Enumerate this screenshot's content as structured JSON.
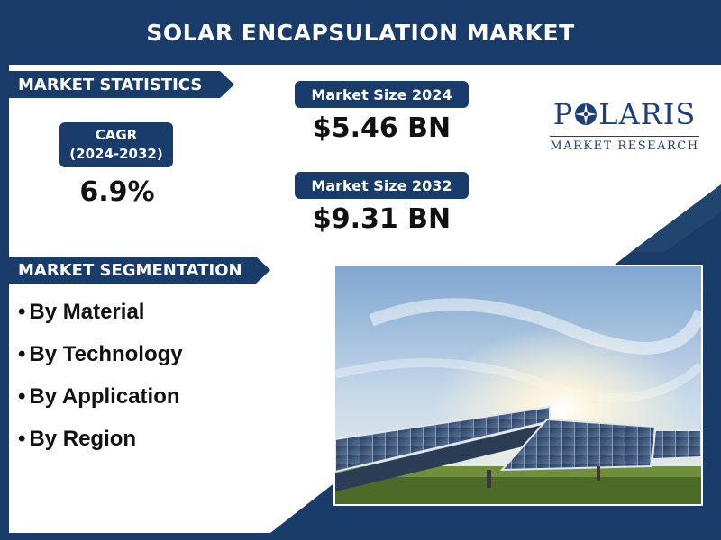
{
  "title": "SOLAR ENCAPSULATION MARKET",
  "statistics": {
    "heading": "MARKET STATISTICS",
    "cagr_label_line1": "CAGR",
    "cagr_label_line2": "(2024-2032)",
    "cagr_value": "6.9%",
    "size_2024_label": "Market Size 2024",
    "size_2024_value": "$5.46 BN",
    "size_2032_label": "Market Size 2032",
    "size_2032_value": "$9.31 BN"
  },
  "logo": {
    "word_pre": "P",
    "word_post": "LARIS",
    "subtitle": "MARKET RESEARCH"
  },
  "segmentation": {
    "heading": "MARKET SEGMENTATION",
    "bullet": "•",
    "items": [
      "By Material",
      "By Technology",
      "By Application",
      "By Region"
    ]
  },
  "colors": {
    "navy": "#1a3c6b",
    "logo_blue": "#1d3e78",
    "text": "#111111"
  },
  "image": {
    "subject": "solar-panels-under-sun-photo"
  }
}
